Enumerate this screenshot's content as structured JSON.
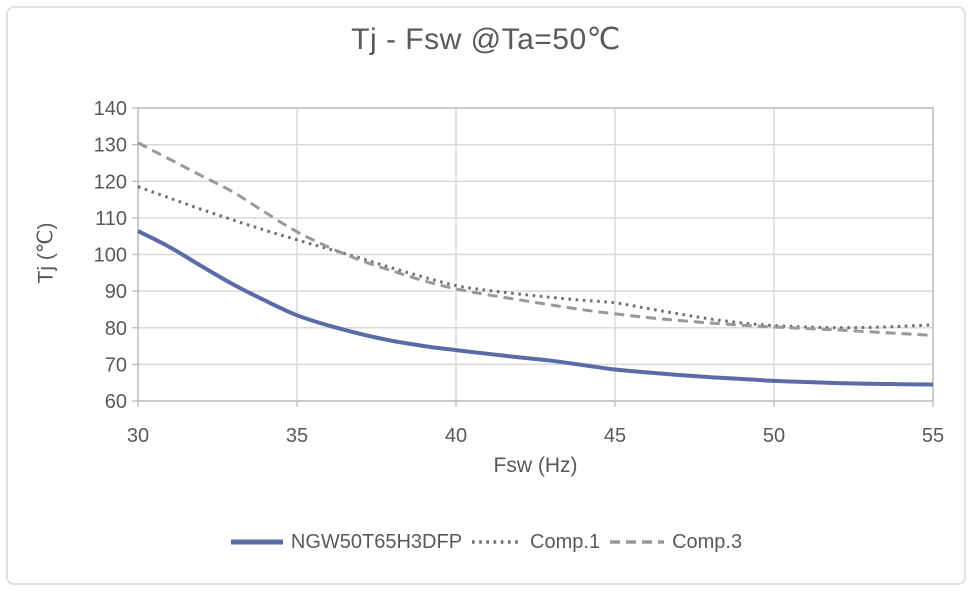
{
  "chart_data": {
    "type": "line",
    "title": "Tj - Fsw @Ta=50℃",
    "xlabel": "Fsw (Hz)",
    "ylabel": "Tj (℃)",
    "xlim": [
      30,
      55
    ],
    "ylim": [
      60,
      140
    ],
    "x_ticks": [
      30,
      35,
      40,
      45,
      50,
      55
    ],
    "y_ticks": [
      140,
      130,
      120,
      110,
      100,
      90,
      80,
      70,
      60
    ],
    "grid": true,
    "legend_position": "bottom",
    "x": [
      30,
      31,
      32,
      33,
      34,
      35,
      36,
      37,
      38,
      39,
      40,
      41,
      42,
      43,
      44,
      45,
      46,
      47,
      48,
      49,
      50,
      51,
      52,
      53,
      54,
      55
    ],
    "series": [
      {
        "name": "NGW50T65H3DFP",
        "style": "solid",
        "color": "#5b6ba7",
        "width": 4,
        "values": [
          106.4,
          102.0,
          96.8,
          91.8,
          87.4,
          83.4,
          80.6,
          78.3,
          76.4,
          75.0,
          73.9,
          72.9,
          71.9,
          71.0,
          69.8,
          68.6,
          67.8,
          67.1,
          66.5,
          66.0,
          65.5,
          65.2,
          64.9,
          64.7,
          64.6,
          64.5
        ]
      },
      {
        "name": "Comp.1",
        "style": "dotted",
        "color": "#6f6f6f",
        "width": 3,
        "values": [
          118.5,
          115.4,
          112.3,
          109.4,
          106.6,
          104.0,
          101.5,
          99.0,
          96.3,
          93.8,
          91.5,
          90.2,
          89.2,
          88.3,
          87.5,
          86.8,
          85.3,
          83.8,
          82.4,
          81.3,
          80.6,
          80.2,
          80.0,
          80.1,
          80.4,
          80.8
        ]
      },
      {
        "name": "Comp.3",
        "style": "dashed",
        "color": "#999999",
        "width": 3,
        "values": [
          130.5,
          126.0,
          121.5,
          117.0,
          111.5,
          106.2,
          102.0,
          98.4,
          95.5,
          92.8,
          90.6,
          89.0,
          87.6,
          86.2,
          84.9,
          83.8,
          82.8,
          82.0,
          81.3,
          80.7,
          80.2,
          79.8,
          79.4,
          78.9,
          78.4,
          77.9
        ]
      }
    ]
  },
  "colors": {
    "text": "#595959",
    "grid": "#d9d9d9",
    "axis": "#bfbfbf",
    "background": "#ffffff"
  }
}
